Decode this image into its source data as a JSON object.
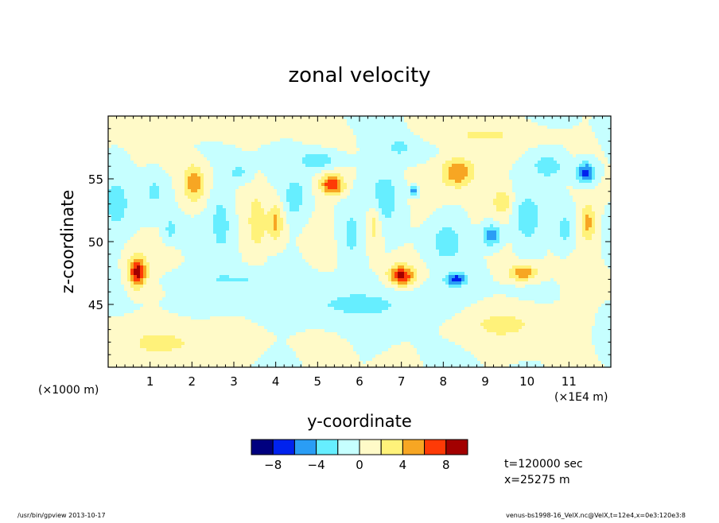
{
  "chart_data": {
    "type": "heatmap",
    "title": "zonal velocity",
    "xlabel": "y-coordinate",
    "ylabel": "z-coordinate",
    "x_scale_label": "(×1E4 m)",
    "y_scale_label": "(×1000 m)",
    "xlim": [
      0,
      12
    ],
    "ylim": [
      40,
      60
    ],
    "x_ticks": [
      1,
      2,
      3,
      4,
      5,
      6,
      7,
      8,
      9,
      10,
      11
    ],
    "y_ticks": [
      45,
      50,
      55
    ],
    "colorbar": {
      "levels": [
        -10,
        -8,
        -6,
        -4,
        -2,
        0,
        2,
        4,
        6,
        8,
        10
      ],
      "labels": [
        -8,
        -4,
        0,
        4,
        8
      ],
      "colors": [
        "#00007f",
        "#0022ee",
        "#2a9df5",
        "#66eeff",
        "#c6ffff",
        "#fffac8",
        "#fff27a",
        "#f7a623",
        "#fe3a06",
        "#a20000"
      ]
    },
    "annotations": [
      "t=120000 sec",
      "x=25275 m"
    ],
    "blobs": [
      {
        "x": 0.7,
        "y": 47.6,
        "sx": 0.22,
        "sy": 1.2,
        "v": 9
      },
      {
        "x": 2.05,
        "y": 54.6,
        "sx": 0.25,
        "sy": 1.5,
        "v": 5.5
      },
      {
        "x": 2.7,
        "y": 51.5,
        "sx": 0.25,
        "sy": 2.5,
        "v": -3
      },
      {
        "x": 3.55,
        "y": 51.5,
        "sx": 0.22,
        "sy": 2.5,
        "v": 3.2
      },
      {
        "x": 3.1,
        "y": 55.5,
        "sx": 0.3,
        "sy": 0.8,
        "v": -2.6
      },
      {
        "x": 4.0,
        "y": 51.5,
        "sx": 0.18,
        "sy": 1.5,
        "v": 4.5
      },
      {
        "x": 4.45,
        "y": 53.5,
        "sx": 0.25,
        "sy": 1.6,
        "v": -3.2
      },
      {
        "x": 5.35,
        "y": 54.5,
        "sx": 0.28,
        "sy": 0.8,
        "v": 8
      },
      {
        "x": 5.0,
        "y": 56.5,
        "sx": 0.5,
        "sy": 0.7,
        "v": -3.5
      },
      {
        "x": 5.8,
        "y": 50.5,
        "sx": 0.25,
        "sy": 2.5,
        "v": -2.5
      },
      {
        "x": 6.35,
        "y": 51.5,
        "sx": 0.18,
        "sy": 1.8,
        "v": 3.5
      },
      {
        "x": 7.0,
        "y": 47.3,
        "sx": 0.3,
        "sy": 0.8,
        "v": 8.5
      },
      {
        "x": 6.6,
        "y": 53.5,
        "sx": 0.35,
        "sy": 2.0,
        "v": -3.8
      },
      {
        "x": 7.3,
        "y": 54.0,
        "sx": 0.1,
        "sy": 0.35,
        "v": -6
      },
      {
        "x": 8.35,
        "y": 55.5,
        "sx": 0.4,
        "sy": 1.2,
        "v": 6
      },
      {
        "x": 8.3,
        "y": 47.0,
        "sx": 0.25,
        "sy": 0.5,
        "v": -7
      },
      {
        "x": 8.1,
        "y": 50.0,
        "sx": 0.35,
        "sy": 1.5,
        "v": -3.4
      },
      {
        "x": 9.15,
        "y": 50.5,
        "sx": 0.22,
        "sy": 0.8,
        "v": -6
      },
      {
        "x": 9.4,
        "y": 53.2,
        "sx": 0.22,
        "sy": 1.0,
        "v": 3.8
      },
      {
        "x": 9.9,
        "y": 47.5,
        "sx": 0.35,
        "sy": 0.6,
        "v": 6
      },
      {
        "x": 10.0,
        "y": 51.8,
        "sx": 0.3,
        "sy": 1.8,
        "v": -3.8
      },
      {
        "x": 11.4,
        "y": 55.5,
        "sx": 0.22,
        "sy": 0.8,
        "v": -7.5
      },
      {
        "x": 11.45,
        "y": 51.5,
        "sx": 0.18,
        "sy": 1.4,
        "v": 5
      },
      {
        "x": 10.9,
        "y": 51.0,
        "sx": 0.2,
        "sy": 1.5,
        "v": -2.8
      },
      {
        "x": 0.2,
        "y": 53.0,
        "sx": 0.3,
        "sy": 2.0,
        "v": -3
      },
      {
        "x": 1.1,
        "y": 54.0,
        "sx": 0.3,
        "sy": 1.5,
        "v": -2.5
      },
      {
        "x": 1.5,
        "y": 51.0,
        "sx": 0.15,
        "sy": 0.8,
        "v": -3.2
      },
      {
        "x": 7.0,
        "y": 57.5,
        "sx": 0.5,
        "sy": 1.0,
        "v": -2.4
      },
      {
        "x": 10.5,
        "y": 56.0,
        "sx": 0.4,
        "sy": 1.0,
        "v": -3.2
      },
      {
        "x": 6.0,
        "y": 45.0,
        "sx": 2.5,
        "sy": 1.5,
        "v": -2.2
      },
      {
        "x": 9.5,
        "y": 43.5,
        "sx": 1.2,
        "sy": 1.5,
        "v": 2.4
      },
      {
        "x": 1.5,
        "y": 42.0,
        "sx": 1.5,
        "sy": 1.5,
        "v": 2.3
      },
      {
        "x": 3.0,
        "y": 47.0,
        "sx": 1.2,
        "sy": 0.8,
        "v": -2.2
      },
      {
        "x": 8.8,
        "y": 58.5,
        "sx": 1.2,
        "sy": 0.8,
        "v": 2.2
      },
      {
        "x": 2.0,
        "y": 59.0,
        "sx": 1.5,
        "sy": 0.8,
        "v": 2.1
      }
    ]
  },
  "footer": {
    "left": "/usr/bin/gpview  2013-10-17",
    "right": "venus-bs1998-16_VelX.nc@VelX,t=12e4,x=0e3:120e3:8"
  }
}
